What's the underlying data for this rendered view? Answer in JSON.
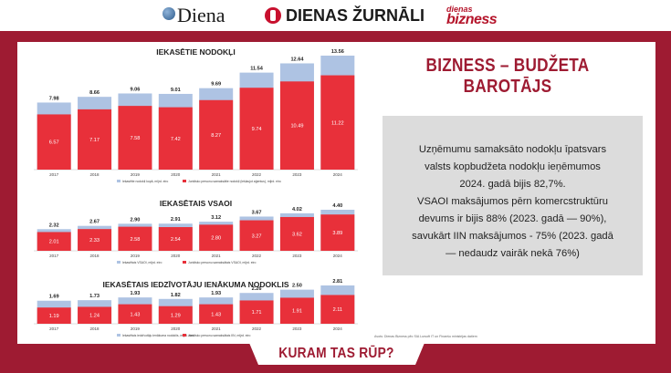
{
  "header": {
    "logo_diena": "Diena",
    "logo_dz": "DIENAS ŽURNĀLI",
    "logo_db_top": "dienas",
    "logo_db_bottom": "bizness"
  },
  "headline": "BIZNESS – BUDŽETA BAROTĀJS",
  "info": {
    "lines": [
      "Uzņēmumu samaksāto nodokļu īpatsvars",
      "valsts kopbudžeta nodokļu ieņēmumos",
      "2024. gadā bijis 82,7%.",
      "VSAOI maksājumos pērn komercstruktūru",
      "devums ir bijis 88% (2023. gadā — 90%),",
      "savukārt IIN maksājumos - 75% (2023. gadā",
      "— nedaudz vairāk nekā 76%)"
    ]
  },
  "source": "Avots: Dienas Bizness pēc SIA Lursoft IT un Finanšu ministrijas datiem",
  "bottom_label": "KURAM TAS RŪP?",
  "colors": {
    "total": "#aec3e3",
    "company": "#e8303a",
    "frame": "#9e1b32"
  },
  "chart_data": [
    {
      "type": "bar",
      "title": "IEKASĒTIE NODOKĻI",
      "categories": [
        "2017",
        "2018",
        "2019",
        "2020",
        "2021",
        "2022",
        "2023",
        "2024"
      ],
      "series": [
        {
          "name": "Iekasētie nodokļi kopā, mljrd. eiro",
          "values": [
            7.98,
            8.66,
            9.06,
            9.01,
            9.69,
            11.54,
            12.64,
            13.56
          ]
        },
        {
          "name": "Juridisko personu samaksātie nodokļi (iekļaujot aģentus), mljrd. eiro",
          "values": [
            6.57,
            7.17,
            7.58,
            7.42,
            8.27,
            9.74,
            10.49,
            11.22
          ]
        }
      ],
      "legend": [
        "Iekasētie nodokļi kopā, mljrd. eiro",
        "Juridisko personu samaksātie nodokļi (iekļaujot aģentus), mljrd. eiro"
      ]
    },
    {
      "type": "bar",
      "title": "IEKASĒTAIS VSAOI",
      "categories": [
        "2017",
        "2018",
        "2019",
        "2020",
        "2021",
        "2022",
        "2023",
        "2024"
      ],
      "series": [
        {
          "name": "Iekasētais VSAOI, mljrd. eiro",
          "values": [
            2.32,
            2.67,
            2.9,
            2.91,
            3.12,
            3.67,
            4.02,
            4.4
          ]
        },
        {
          "name": "Juridisko personu samaksātais VSAOI, mljrd. eiro",
          "values": [
            2.01,
            2.33,
            2.58,
            2.54,
            2.8,
            3.27,
            3.62,
            3.89
          ]
        }
      ],
      "legend": [
        "Iekasētais VSAOI, mljrd. eiro",
        "Juridisko personu samaksātais VSAOI, mljrd. eiro"
      ]
    },
    {
      "type": "bar",
      "title": "IEKASĒTAIS IEDZĪVOTĀJU IENĀKUMA NODOKLIS",
      "categories": [
        "2017",
        "2018",
        "2019",
        "2020",
        "2021",
        "2022",
        "2023",
        "2024"
      ],
      "series": [
        {
          "name": "Iekasētais iedzīvotāju ienākuma nodoklis, mljrd. eiro",
          "values": [
            1.69,
            1.73,
            1.93,
            1.82,
            1.93,
            2.26,
            2.5,
            2.81
          ]
        },
        {
          "name": "Juridisko personu samaksātais IIN, mljrd. eiro",
          "values": [
            1.19,
            1.24,
            1.43,
            1.29,
            1.43,
            1.71,
            1.91,
            2.11
          ]
        }
      ],
      "legend": [
        "Iekasētais iedzīvotāju ienākuma nodoklis, mljrd. eiro",
        "Juridisko personu samaksātais IIN, mljrd. eiro"
      ]
    }
  ]
}
